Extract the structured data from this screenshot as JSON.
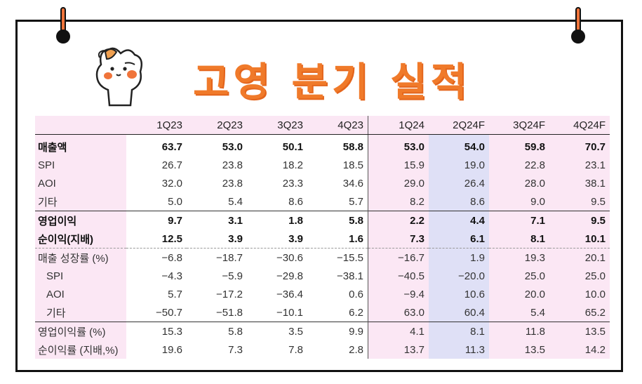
{
  "title": "고영 분기 실적",
  "table": {
    "columns": [
      "1Q23",
      "2Q23",
      "3Q23",
      "4Q23",
      "1Q24",
      "2Q24F",
      "3Q24F",
      "4Q24F"
    ],
    "rows": [
      {
        "label": "매출액",
        "values": [
          "63.7",
          "53.0",
          "50.1",
          "58.8",
          "53.0",
          "54.0",
          "59.8",
          "70.7"
        ]
      },
      {
        "label": "SPI",
        "values": [
          "26.7",
          "23.8",
          "18.2",
          "18.5",
          "15.9",
          "19.0",
          "22.8",
          "23.1"
        ]
      },
      {
        "label": "AOI",
        "values": [
          "32.0",
          "23.8",
          "23.3",
          "34.6",
          "29.0",
          "26.4",
          "28.0",
          "38.1"
        ]
      },
      {
        "label": "기타",
        "values": [
          "5.0",
          "5.4",
          "8.6",
          "5.7",
          "8.2",
          "8.6",
          "9.0",
          "9.5"
        ]
      },
      {
        "label": "영업이익",
        "values": [
          "9.7",
          "3.1",
          "1.8",
          "5.8",
          "2.2",
          "4.4",
          "7.1",
          "9.5"
        ]
      },
      {
        "label": "순이익(지배)",
        "values": [
          "12.5",
          "3.9",
          "3.9",
          "1.6",
          "7.3",
          "6.1",
          "8.1",
          "10.1"
        ]
      },
      {
        "label": "매출 성장률 (%)",
        "values": [
          "−6.8",
          "−18.7",
          "−30.6",
          "−15.5",
          "−16.7",
          "1.9",
          "19.3",
          "20.1"
        ]
      },
      {
        "label": "SPI",
        "values": [
          "−4.3",
          "−5.9",
          "−29.8",
          "−38.1",
          "−40.5",
          "−20.0",
          "25.0",
          "25.0"
        ]
      },
      {
        "label": "AOI",
        "values": [
          "5.7",
          "−17.2",
          "−36.4",
          "0.6",
          "−9.4",
          "10.6",
          "20.0",
          "10.0"
        ]
      },
      {
        "label": "기타",
        "values": [
          "−50.7",
          "−51.8",
          "−10.1",
          "6.2",
          "63.0",
          "60.4",
          "5.4",
          "65.2"
        ]
      },
      {
        "label": "영업이익률 (%)",
        "values": [
          "15.3",
          "5.8",
          "3.5",
          "9.9",
          "4.1",
          "8.1",
          "11.8",
          "13.5"
        ]
      },
      {
        "label": "순이익률 (지배,%)",
        "values": [
          "19.6",
          "7.3",
          "7.8",
          "2.8",
          "13.7",
          "11.3",
          "13.5",
          "14.2"
        ]
      }
    ]
  },
  "colors": {
    "title": "#f07a2a",
    "highlight_column": "#dfe0f6",
    "pink_band": "#fbe7f4",
    "peg": "#f0743a"
  },
  "icons": [
    "cat-mascot-icon",
    "pin-peg-icon"
  ]
}
